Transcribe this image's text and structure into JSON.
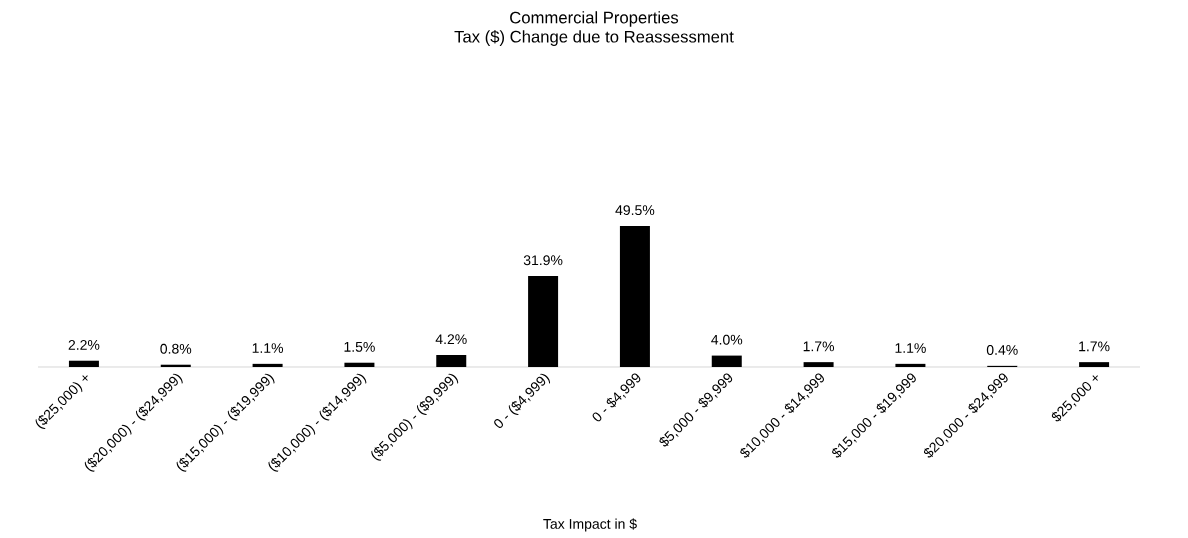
{
  "chart_data": {
    "type": "bar",
    "title": "Commercial Properties",
    "subtitle": "Tax ($) Change due to Reassessment",
    "xlabel": "Tax Impact in $",
    "categories": [
      "($25,000) +",
      "($20,000) - ($24,999)",
      "($15,000) - ($19,999)",
      "($10,000) - ($14,999)",
      "($5,000) - ($9,999)",
      "0 - ($4,999)",
      "0 - $4,999",
      "$5,000 - $9,999",
      "$10,000 - $14,999",
      "$15,000 - $19,999",
      "$20,000 - $24,999",
      "$25,000 +"
    ],
    "values": [
      2.2,
      0.8,
      1.1,
      1.5,
      4.2,
      31.9,
      49.5,
      4.0,
      1.7,
      1.1,
      0.4,
      1.7
    ],
    "value_labels": [
      "2.2%",
      "0.8%",
      "1.1%",
      "1.5%",
      "4.2%",
      "31.9%",
      "49.5%",
      "4.0%",
      "1.7%",
      "1.1%",
      "0.4%",
      "1.7%"
    ],
    "color": "#000000"
  }
}
